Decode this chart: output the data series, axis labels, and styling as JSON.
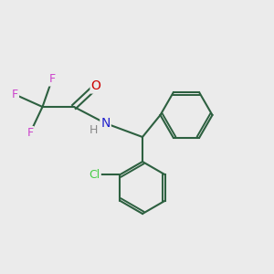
{
  "background_color": "#ebebeb",
  "bond_color": "#2d6040",
  "atom_colors": {
    "F": "#cc44cc",
    "O": "#cc0000",
    "N": "#2222cc",
    "H": "#888888",
    "Cl": "#44cc44",
    "C": "#2d6040"
  },
  "figsize": [
    3.0,
    3.0
  ],
  "dpi": 100
}
